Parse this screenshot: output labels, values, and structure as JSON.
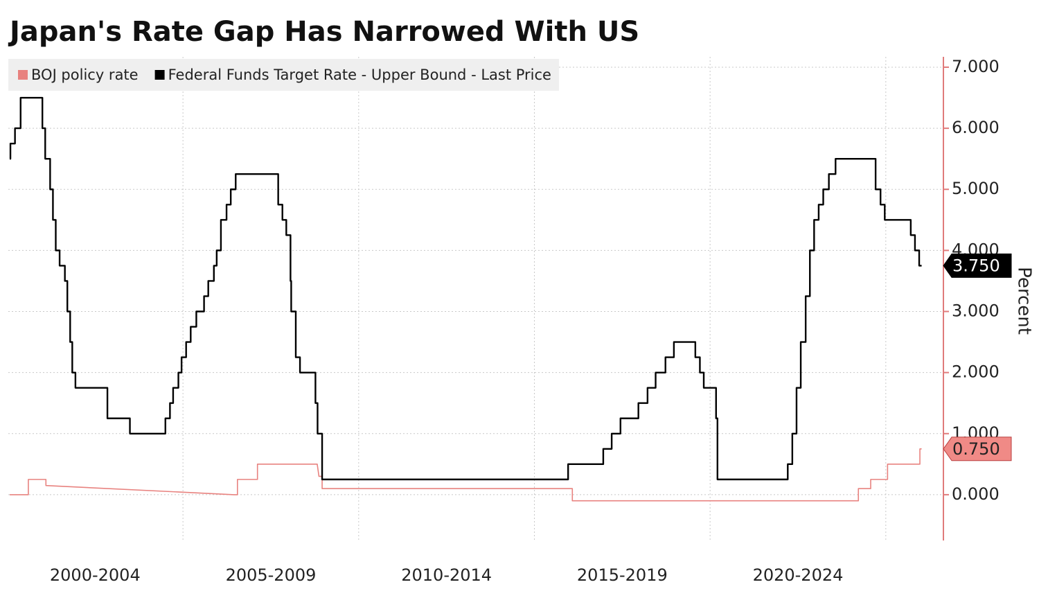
{
  "chart_data": {
    "type": "line",
    "title": "Japan's Rate Gap Has Narrowed With US",
    "y_axis_label": "Percent",
    "y_axis_side": "right",
    "ylim": [
      -0.75,
      7.17
    ],
    "yticks": [
      {
        "value": 0,
        "label": "0.000"
      },
      {
        "value": 1,
        "label": "1.000"
      },
      {
        "value": 2,
        "label": "2.000"
      },
      {
        "value": 3,
        "label": "3.000"
      },
      {
        "value": 4,
        "label": "4.000"
      },
      {
        "value": 5,
        "label": "5.000"
      },
      {
        "value": 6,
        "label": "6.000"
      },
      {
        "value": 7,
        "label": "7.000"
      }
    ],
    "xlim": [
      2000.03,
      2026.6
    ],
    "xticks": [
      {
        "value": 2002.5,
        "label": "2000-2004"
      },
      {
        "value": 2007.5,
        "label": "2005-2009"
      },
      {
        "value": 2012.5,
        "label": "2010-2014"
      },
      {
        "value": 2017.5,
        "label": "2015-2019"
      },
      {
        "value": 2022.5,
        "label": "2020-2024"
      }
    ],
    "x_grid": [
      2005,
      2010,
      2015,
      2020,
      2025
    ],
    "grid": true,
    "legend_position": "top-left",
    "series": [
      {
        "name": "BOJ policy rate",
        "color": "#e8827f",
        "last_value_label": "0.750",
        "x": [
          2000.07,
          2000.6,
          2000.6,
          2001.1,
          2001.1,
          2006.45,
          2006.55,
          2006.55,
          2007.12,
          2007.12,
          2008.82,
          2008.87,
          2008.96,
          2008.96,
          2016.08,
          2016.08,
          2024.22,
          2024.22,
          2024.57,
          2024.57,
          2025.05,
          2025.05,
          2025.97,
          2025.97,
          2026.02
        ],
        "values": [
          0,
          0,
          0.25,
          0.25,
          0.15,
          0,
          0,
          0.25,
          0.25,
          0.5,
          0.5,
          0.3,
          0.3,
          0.1,
          0.1,
          -0.1,
          -0.1,
          0.1,
          0.1,
          0.25,
          0.25,
          0.5,
          0.5,
          0.75,
          0.75
        ]
      },
      {
        "name": "Federal Funds Target Rate - Upper Bound - Last Price",
        "color": "#000000",
        "last_value_label": "3.750",
        "x": [
          2000.07,
          2000.09,
          2000.09,
          2000.22,
          2000.22,
          2000.38,
          2000.38,
          2001.0,
          2001.0,
          2001.08,
          2001.08,
          2001.22,
          2001.22,
          2001.3,
          2001.3,
          2001.38,
          2001.38,
          2001.49,
          2001.49,
          2001.64,
          2001.64,
          2001.71,
          2001.71,
          2001.79,
          2001.79,
          2001.85,
          2001.85,
          2001.94,
          2001.94,
          2002.85,
          2002.85,
          2003.49,
          2003.49,
          2004.5,
          2004.5,
          2004.63,
          2004.63,
          2004.72,
          2004.72,
          2004.87,
          2004.87,
          2004.96,
          2004.96,
          2005.09,
          2005.09,
          2005.22,
          2005.22,
          2005.38,
          2005.38,
          2005.6,
          2005.6,
          2005.72,
          2005.72,
          2005.88,
          2005.88,
          2005.96,
          2005.96,
          2006.08,
          2006.08,
          2006.24,
          2006.24,
          2006.36,
          2006.36,
          2006.5,
          2006.5,
          2007.71,
          2007.71,
          2007.83,
          2007.83,
          2007.94,
          2007.94,
          2008.06,
          2008.06,
          2008.08,
          2008.08,
          2008.21,
          2008.21,
          2008.33,
          2008.33,
          2008.77,
          2008.77,
          2008.83,
          2008.83,
          2008.96,
          2008.96,
          2015.96,
          2015.96,
          2016.96,
          2016.96,
          2017.2,
          2017.2,
          2017.45,
          2017.45,
          2017.96,
          2017.96,
          2018.22,
          2018.22,
          2018.45,
          2018.45,
          2018.73,
          2018.73,
          2018.97,
          2018.97,
          2019.58,
          2019.58,
          2019.71,
          2019.71,
          2019.82,
          2019.82,
          2020.17,
          2020.17,
          2020.21,
          2020.21,
          2022.21,
          2022.21,
          2022.34,
          2022.34,
          2022.46,
          2022.46,
          2022.58,
          2022.58,
          2022.72,
          2022.72,
          2022.84,
          2022.84,
          2022.96,
          2022.96,
          2023.09,
          2023.09,
          2023.22,
          2023.22,
          2023.38,
          2023.38,
          2023.57,
          2023.57,
          2024.71,
          2024.71,
          2024.85,
          2024.85,
          2024.97,
          2024.97,
          2025.71,
          2025.71,
          2025.83,
          2025.83,
          2025.95,
          2025.95,
          2026.02
        ],
        "values": [
          5.5,
          5.5,
          5.75,
          5.75,
          6.0,
          6.0,
          6.5,
          6.5,
          6.0,
          6.0,
          5.5,
          5.5,
          5.0,
          5.0,
          4.5,
          4.5,
          4.0,
          4.0,
          3.75,
          3.75,
          3.5,
          3.5,
          3.0,
          3.0,
          2.5,
          2.5,
          2.0,
          2.0,
          1.75,
          1.75,
          1.25,
          1.25,
          1.0,
          1.0,
          1.25,
          1.25,
          1.5,
          1.5,
          1.75,
          1.75,
          2.0,
          2.0,
          2.25,
          2.25,
          2.5,
          2.5,
          2.75,
          2.75,
          3.0,
          3.0,
          3.25,
          3.25,
          3.5,
          3.5,
          3.75,
          3.75,
          4.0,
          4.0,
          4.5,
          4.5,
          4.75,
          4.75,
          5.0,
          5.0,
          5.25,
          5.25,
          4.75,
          4.75,
          4.5,
          4.5,
          4.25,
          4.25,
          3.5,
          3.5,
          3.0,
          3.0,
          2.25,
          2.25,
          2.0,
          2.0,
          1.5,
          1.5,
          1.0,
          1.0,
          0.25,
          0.25,
          0.5,
          0.5,
          0.75,
          0.75,
          1.0,
          1.0,
          1.25,
          1.25,
          1.5,
          1.5,
          1.75,
          1.75,
          2.0,
          2.0,
          2.25,
          2.25,
          2.5,
          2.5,
          2.25,
          2.25,
          2.0,
          2.0,
          1.75,
          1.75,
          1.25,
          1.25,
          0.25,
          0.25,
          0.5,
          0.5,
          1.0,
          1.0,
          1.75,
          1.75,
          2.5,
          2.5,
          3.25,
          3.25,
          4.0,
          4.0,
          4.5,
          4.5,
          4.75,
          4.75,
          5.0,
          5.0,
          5.25,
          5.25,
          5.5,
          5.5,
          5.0,
          5.0,
          4.75,
          4.75,
          4.5,
          4.5,
          4.25,
          4.25,
          4.0,
          4.0,
          3.75,
          3.75
        ]
      }
    ]
  }
}
